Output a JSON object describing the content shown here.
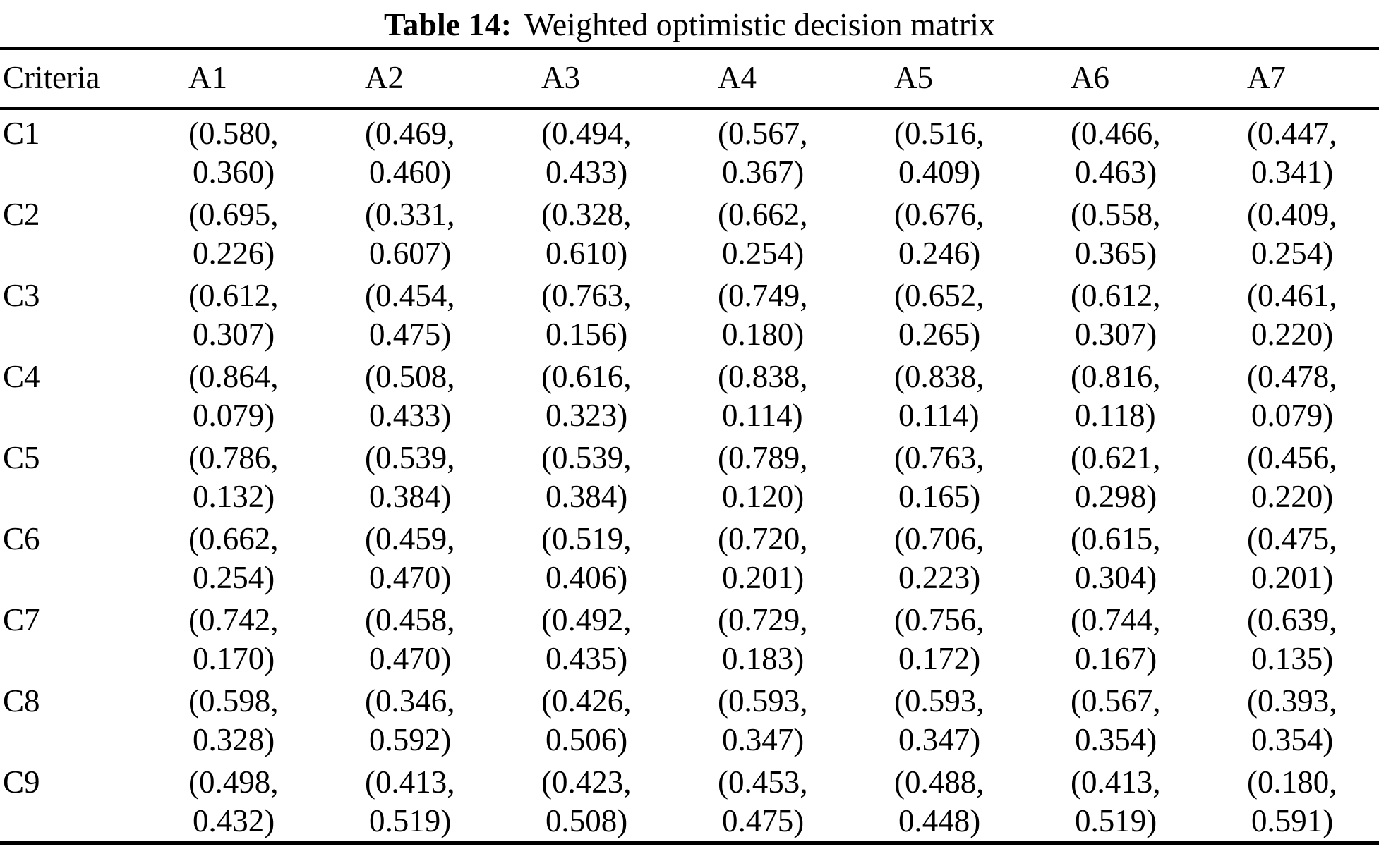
{
  "caption": {
    "label": "Table 14:",
    "text": "Weighted optimistic decision matrix"
  },
  "colors": {
    "background": "#ffffff",
    "text": "#000000",
    "rule": "#000000"
  },
  "table": {
    "header": [
      "Criteria",
      "A1",
      "A2",
      "A3",
      "A4",
      "A5",
      "A6",
      "A7"
    ],
    "rows": [
      {
        "criterion": "C1",
        "cells": [
          [
            "0.580",
            "0.360"
          ],
          [
            "0.469",
            "0.460"
          ],
          [
            "0.494",
            "0.433"
          ],
          [
            "0.567",
            "0.367"
          ],
          [
            "0.516",
            "0.409"
          ],
          [
            "0.466",
            "0.463"
          ],
          [
            "0.447",
            "0.341"
          ]
        ]
      },
      {
        "criterion": "C2",
        "cells": [
          [
            "0.695",
            "0.226"
          ],
          [
            "0.331",
            "0.607"
          ],
          [
            "0.328",
            "0.610"
          ],
          [
            "0.662",
            "0.254"
          ],
          [
            "0.676",
            "0.246"
          ],
          [
            "0.558",
            "0.365"
          ],
          [
            "0.409",
            "0.254"
          ]
        ]
      },
      {
        "criterion": "C3",
        "cells": [
          [
            "0.612",
            "0.307"
          ],
          [
            "0.454",
            "0.475"
          ],
          [
            "0.763",
            "0.156"
          ],
          [
            "0.749",
            "0.180"
          ],
          [
            "0.652",
            "0.265"
          ],
          [
            "0.612",
            "0.307"
          ],
          [
            "0.461",
            "0.220"
          ]
        ]
      },
      {
        "criterion": "C4",
        "cells": [
          [
            "0.864",
            "0.079"
          ],
          [
            "0.508",
            "0.433"
          ],
          [
            "0.616",
            "0.323"
          ],
          [
            "0.838",
            "0.114"
          ],
          [
            "0.838",
            "0.114"
          ],
          [
            "0.816",
            "0.118"
          ],
          [
            "0.478",
            "0.079"
          ]
        ]
      },
      {
        "criterion": "C5",
        "cells": [
          [
            "0.786",
            "0.132"
          ],
          [
            "0.539",
            "0.384"
          ],
          [
            "0.539",
            "0.384"
          ],
          [
            "0.789",
            "0.120"
          ],
          [
            "0.763",
            "0.165"
          ],
          [
            "0.621",
            "0.298"
          ],
          [
            "0.456",
            "0.220"
          ]
        ]
      },
      {
        "criterion": "C6",
        "cells": [
          [
            "0.662",
            "0.254"
          ],
          [
            "0.459",
            "0.470"
          ],
          [
            "0.519",
            "0.406"
          ],
          [
            "0.720",
            "0.201"
          ],
          [
            "0.706",
            "0.223"
          ],
          [
            "0.615",
            "0.304"
          ],
          [
            "0.475",
            "0.201"
          ]
        ]
      },
      {
        "criterion": "C7",
        "cells": [
          [
            "0.742",
            "0.170"
          ],
          [
            "0.458",
            "0.470"
          ],
          [
            "0.492",
            "0.435"
          ],
          [
            "0.729",
            "0.183"
          ],
          [
            "0.756",
            "0.172"
          ],
          [
            "0.744",
            "0.167"
          ],
          [
            "0.639",
            "0.135"
          ]
        ]
      },
      {
        "criterion": "C8",
        "cells": [
          [
            "0.598",
            "0.328"
          ],
          [
            "0.346",
            "0.592"
          ],
          [
            "0.426",
            "0.506"
          ],
          [
            "0.593",
            "0.347"
          ],
          [
            "0.593",
            "0.347"
          ],
          [
            "0.567",
            "0.354"
          ],
          [
            "0.393",
            "0.354"
          ]
        ]
      },
      {
        "criterion": "C9",
        "cells": [
          [
            "0.498",
            "0.432"
          ],
          [
            "0.413",
            "0.519"
          ],
          [
            "0.423",
            "0.508"
          ],
          [
            "0.453",
            "0.475"
          ],
          [
            "0.488",
            "0.448"
          ],
          [
            "0.413",
            "0.519"
          ],
          [
            "0.180",
            "0.591"
          ]
        ]
      }
    ],
    "cell_format": {
      "open": "(",
      "separator": ",",
      "close": ")"
    }
  }
}
